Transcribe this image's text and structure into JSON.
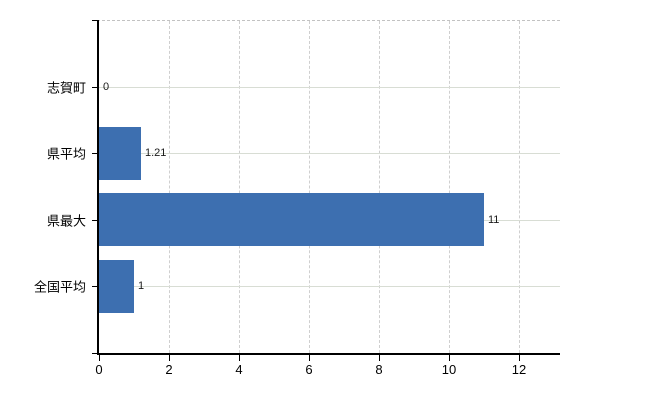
{
  "chart_data": {
    "type": "bar",
    "orientation": "horizontal",
    "title": "",
    "categories": [
      "志賀町",
      "県平均",
      "県最大",
      "全国平均"
    ],
    "values": [
      0,
      1.21,
      11,
      1
    ],
    "value_labels": [
      "0",
      "1.21",
      "11",
      "1"
    ],
    "x_ticks": [
      0,
      2,
      4,
      6,
      8,
      10,
      12
    ],
    "xlim": [
      0,
      13.17
    ],
    "grid": true,
    "legend": "none",
    "bar_color": "#3d6fb0",
    "axis_color": "#000000",
    "h_gridline_color": "#d8ddd4",
    "v_gridline_color": "#cfcfcf",
    "tick_label_color": "#000000",
    "value_label_color": "#1a1a1a"
  }
}
